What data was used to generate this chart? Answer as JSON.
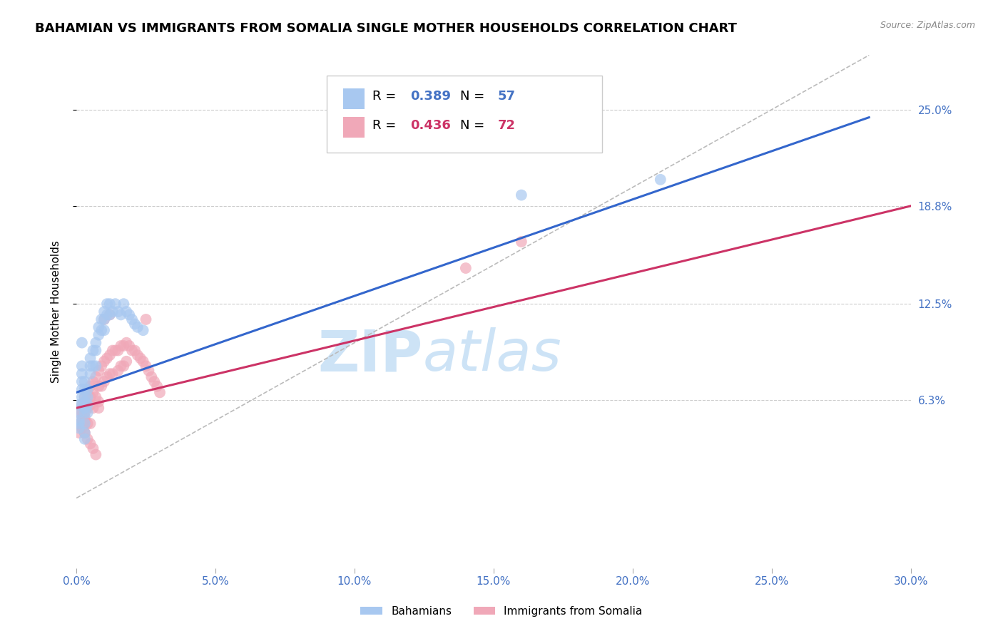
{
  "title": "BAHAMIAN VS IMMIGRANTS FROM SOMALIA SINGLE MOTHER HOUSEHOLDS CORRELATION CHART",
  "source": "Source: ZipAtlas.com",
  "ylabel": "Single Mother Households",
  "blue_color": "#a8c8f0",
  "pink_color": "#f0a8b8",
  "blue_line_color": "#3366cc",
  "pink_line_color": "#cc3366",
  "dashed_line_color": "#bbbbbb",
  "watermark_zip": "ZIP",
  "watermark_atlas": "atlas",
  "xlim": [
    0.0,
    0.3
  ],
  "ylim": [
    -0.045,
    0.285
  ],
  "ytick_positions": [
    0.063,
    0.125,
    0.188,
    0.25
  ],
  "ytick_labels": [
    "6.3%",
    "12.5%",
    "18.8%",
    "25.0%"
  ],
  "xtick_positions": [
    0.0,
    0.05,
    0.1,
    0.15,
    0.2,
    0.25,
    0.3
  ],
  "xtick_labels": [
    "0.0%",
    "5.0%",
    "10.0%",
    "15.0%",
    "20.0%",
    "25.0%",
    "30.0%"
  ],
  "axis_label_color": "#4472c4",
  "title_fontsize": 13,
  "tick_fontsize": 11,
  "blue_line": {
    "x0": 0.0,
    "x1": 0.285,
    "y0": 0.068,
    "y1": 0.245
  },
  "pink_line": {
    "x0": 0.0,
    "x1": 0.3,
    "y0": 0.058,
    "y1": 0.188
  },
  "dash_line": {
    "x0": 0.0,
    "x1": 0.285,
    "y0": 0.0,
    "y1": 0.285
  },
  "blue_scatter_x": [
    0.001,
    0.001,
    0.001,
    0.001,
    0.001,
    0.002,
    0.002,
    0.002,
    0.002,
    0.002,
    0.002,
    0.003,
    0.003,
    0.003,
    0.003,
    0.003,
    0.003,
    0.003,
    0.004,
    0.004,
    0.004,
    0.004,
    0.005,
    0.005,
    0.005,
    0.006,
    0.006,
    0.007,
    0.007,
    0.007,
    0.008,
    0.008,
    0.009,
    0.009,
    0.01,
    0.01,
    0.01,
    0.011,
    0.011,
    0.012,
    0.012,
    0.013,
    0.014,
    0.015,
    0.016,
    0.017,
    0.018,
    0.019,
    0.02,
    0.021,
    0.022,
    0.024,
    0.003,
    0.003,
    0.16,
    0.21,
    0.002
  ],
  "blue_scatter_y": [
    0.06,
    0.055,
    0.05,
    0.048,
    0.045,
    0.085,
    0.08,
    0.075,
    0.07,
    0.065,
    0.06,
    0.075,
    0.07,
    0.065,
    0.062,
    0.058,
    0.055,
    0.048,
    0.07,
    0.065,
    0.06,
    0.055,
    0.09,
    0.085,
    0.08,
    0.095,
    0.085,
    0.1,
    0.095,
    0.085,
    0.11,
    0.105,
    0.115,
    0.108,
    0.12,
    0.115,
    0.108,
    0.125,
    0.118,
    0.125,
    0.118,
    0.12,
    0.125,
    0.12,
    0.118,
    0.125,
    0.12,
    0.118,
    0.115,
    0.112,
    0.11,
    0.108,
    0.042,
    0.038,
    0.195,
    0.205,
    0.1
  ],
  "pink_scatter_x": [
    0.001,
    0.001,
    0.001,
    0.002,
    0.002,
    0.002,
    0.002,
    0.003,
    0.003,
    0.003,
    0.003,
    0.003,
    0.004,
    0.004,
    0.004,
    0.004,
    0.005,
    0.005,
    0.005,
    0.005,
    0.006,
    0.006,
    0.006,
    0.007,
    0.007,
    0.008,
    0.008,
    0.008,
    0.009,
    0.009,
    0.01,
    0.01,
    0.011,
    0.011,
    0.012,
    0.012,
    0.013,
    0.013,
    0.014,
    0.015,
    0.015,
    0.016,
    0.016,
    0.017,
    0.017,
    0.018,
    0.018,
    0.019,
    0.02,
    0.021,
    0.022,
    0.023,
    0.024,
    0.025,
    0.026,
    0.027,
    0.028,
    0.029,
    0.03,
    0.025,
    0.003,
    0.004,
    0.005,
    0.006,
    0.007,
    0.16,
    0.003,
    0.003,
    0.14,
    0.008,
    0.01,
    0.012
  ],
  "pink_scatter_y": [
    0.055,
    0.048,
    0.042,
    0.06,
    0.055,
    0.05,
    0.045,
    0.065,
    0.06,
    0.055,
    0.05,
    0.042,
    0.068,
    0.062,
    0.058,
    0.048,
    0.072,
    0.065,
    0.06,
    0.048,
    0.075,
    0.068,
    0.058,
    0.078,
    0.065,
    0.082,
    0.072,
    0.062,
    0.085,
    0.072,
    0.088,
    0.075,
    0.09,
    0.078,
    0.092,
    0.08,
    0.095,
    0.08,
    0.095,
    0.095,
    0.082,
    0.098,
    0.085,
    0.098,
    0.085,
    0.1,
    0.088,
    0.098,
    0.095,
    0.095,
    0.092,
    0.09,
    0.088,
    0.085,
    0.082,
    0.078,
    0.075,
    0.072,
    0.068,
    0.115,
    0.042,
    0.038,
    0.035,
    0.032,
    0.028,
    0.165,
    0.052,
    0.048,
    0.148,
    0.058,
    0.115,
    0.118
  ]
}
